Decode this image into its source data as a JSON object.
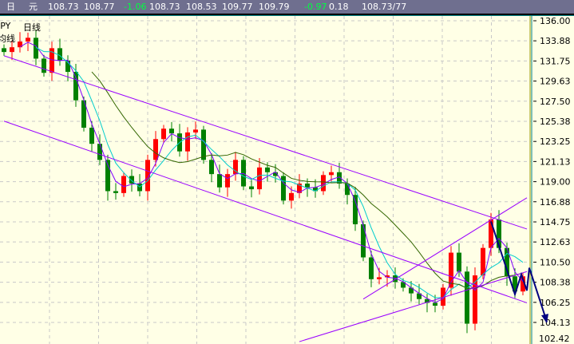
{
  "header": {
    "f1": "日",
    "f2": "元",
    "v1": "108.73",
    "v2": "108.77",
    "v3": "-1.06",
    "v4": "108.73",
    "v5": "108.53",
    "v6": "109.77",
    "v7": "109.79",
    "v8": "-0.97",
    "v9": "0.18",
    "v10": "108.73/77"
  },
  "labels": {
    "symbol": "JPY",
    "period": "日线",
    "ma": "均线"
  },
  "colors": {
    "up": "#ff0000",
    "down": "#008000",
    "channel": "#9900ff",
    "projection": "#000080",
    "ma_short": "#8000ff",
    "ma_mid": "#00cccc",
    "ma_long": "#336600",
    "background": "#ffffe6"
  },
  "chart_data": {
    "type": "candlestick",
    "y_ticks": [
      "136.00",
      "133.88",
      "131.75",
      "129.63",
      "127.50",
      "125.38",
      "123.25",
      "121.13",
      "119.00",
      "116.88",
      "114.75",
      "112.63",
      "110.50",
      "108.38",
      "106.25",
      "104.13",
      "102.42"
    ],
    "ylim": [
      101.85,
      137.6
    ],
    "grid": true,
    "closes": [
      132.7,
      133.2,
      133.8,
      134.2,
      132,
      130.5,
      133.1,
      131.8,
      130.6,
      127.6,
      124.7,
      123,
      121.3,
      118,
      117.8,
      119.6,
      118.8,
      118,
      121.3,
      123.5,
      124.6,
      124.1,
      122.2,
      124.2,
      124.5,
      121.3,
      119.8,
      118.4,
      119.8,
      121.3,
      118.5,
      118.2,
      120.5,
      120,
      119.6,
      117,
      117.8,
      118.8,
      118.4,
      118,
      119.7,
      120,
      118.8,
      117.6,
      114.5,
      111,
      108.7,
      108.9,
      109.1,
      108.4,
      107.8,
      107.2,
      106.6,
      106.2,
      105.9,
      107.8,
      111.5,
      109.5,
      104,
      109.1,
      112,
      115,
      112,
      109,
      107.4,
      109
    ],
    "moving_averages": [
      3,
      5,
      12
    ],
    "trendlines": [
      {
        "from": [
          0,
          132.3
        ],
        "to": [
          65.5,
          114.0
        ]
      },
      {
        "from": [
          0,
          125.4
        ],
        "to": [
          65.5,
          106.2
        ]
      },
      {
        "from": [
          45,
          106.6
        ],
        "to": [
          65.5,
          117.3
        ]
      },
      {
        "from": [
          37,
          102.1
        ],
        "to": [
          65.5,
          109.5
        ]
      }
    ],
    "projection": [
      [
        61,
        114.8
      ],
      [
        64,
        107.1
      ],
      [
        64.8,
        109.2
      ],
      [
        65.5,
        107.5
      ],
      [
        65.8,
        109.9
      ],
      [
        68,
        104.2
      ]
    ]
  }
}
